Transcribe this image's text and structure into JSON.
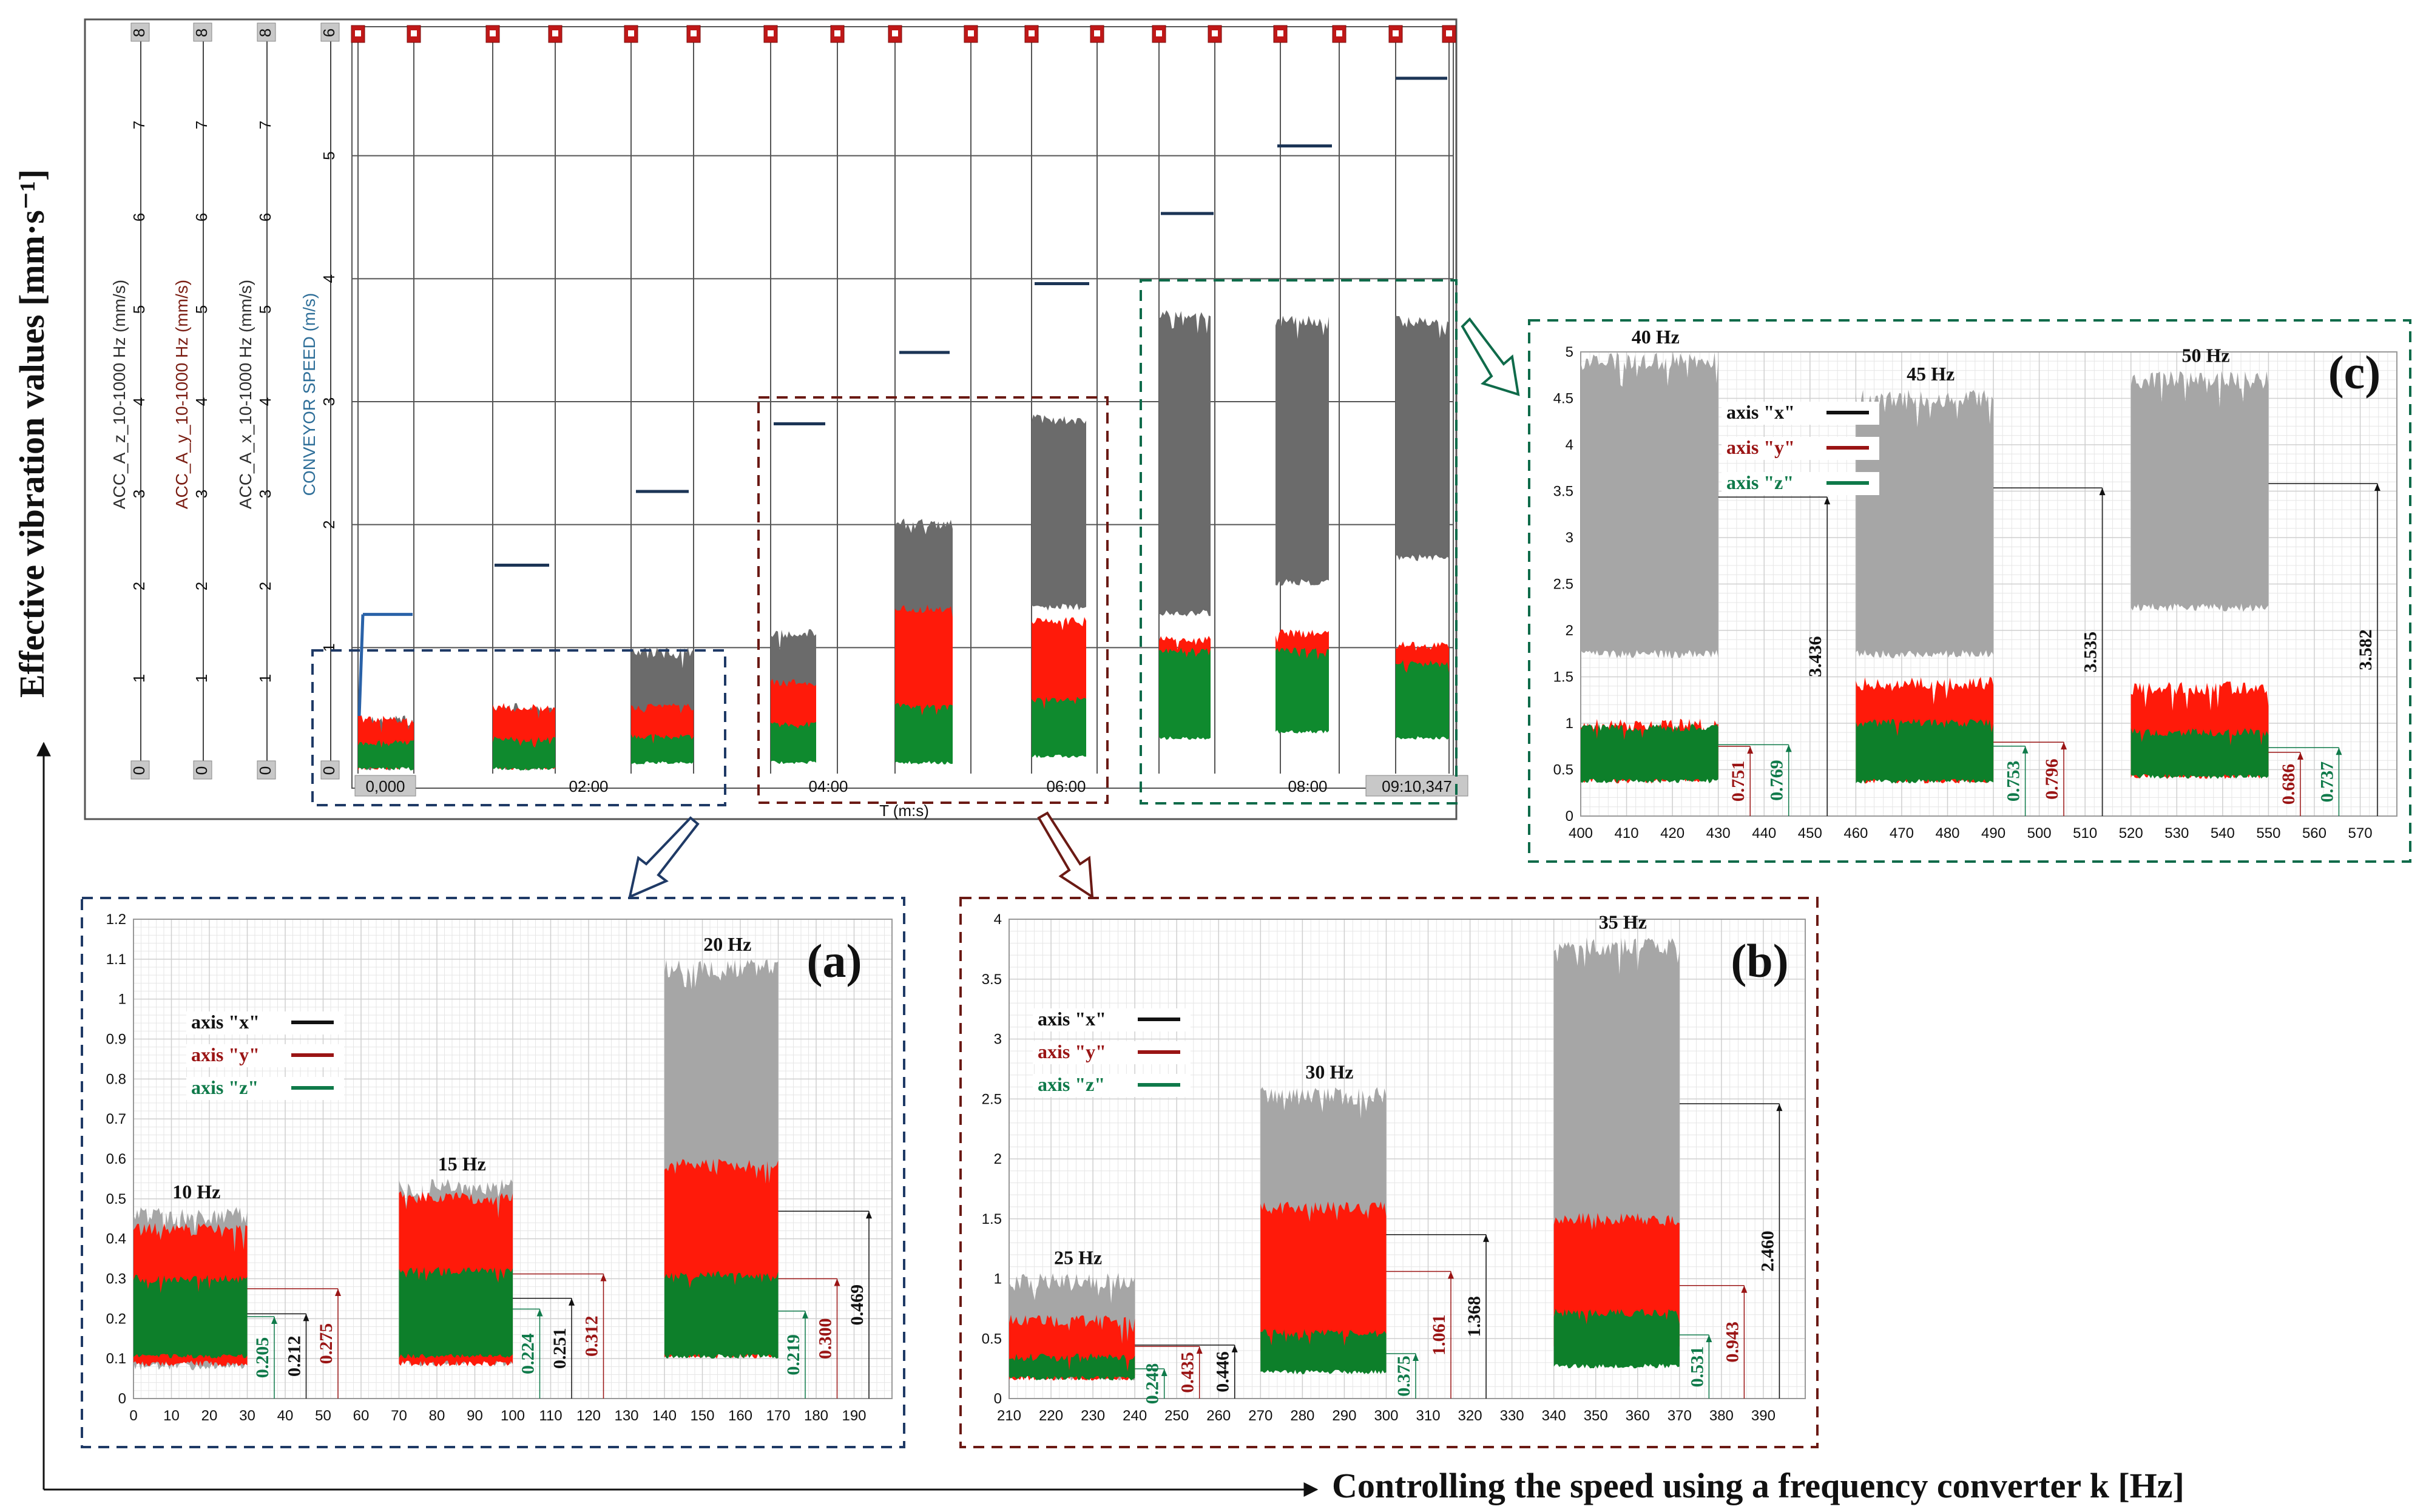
{
  "figure": {
    "ylabel": "Effective vibration values [mm·s⁻¹]",
    "xlabel": "Controlling the speed using a frequency converter k [Hz]"
  },
  "colors": {
    "x": "#8c8c8c",
    "y": "#ff1a0a",
    "z": "#0f8a2e",
    "x_dark": "#6b6b6b",
    "blue": "#1f3a66",
    "maroon": "#6b1a14",
    "green": "#0f6b4a"
  },
  "recorder": {
    "axis_titles": [
      "ACC_A_z_10-1000 Hz (mm/s)",
      "ACC_A_y_10-1000 Hz (mm/s)",
      "ACC_A_x_10-1000 Hz (mm/s)",
      "CONVEYOR SPEED (m/s)"
    ],
    "left_ticks": [
      "0",
      "1",
      "2",
      "3",
      "4",
      "5",
      "6",
      "7",
      "8"
    ],
    "speed_ticks": [
      "0",
      "1",
      "2",
      "3",
      "4",
      "5",
      "6"
    ],
    "time_ticks": [
      "0,000",
      "02:00",
      "04:00",
      "06:00",
      "08:00",
      "09:10,347"
    ],
    "time_label": "T (m:s)",
    "speed_levels": [
      1.27,
      1.67,
      2.27,
      2.82,
      3.4,
      3.96,
      4.53,
      5.08,
      5.63
    ],
    "blocks": [
      {
        "x_low": 0.0,
        "x_high": 0.45,
        "y_low": 0.0,
        "y_high": 0.45,
        "z_low": 0.0,
        "z_high": 0.25
      },
      {
        "x_low": 0.0,
        "x_high": 0.55,
        "y_low": 0.0,
        "y_high": 0.55,
        "z_low": 0.0,
        "z_high": 0.28
      },
      {
        "x_low": 0.35,
        "x_high": 1.0,
        "y_low": 0.1,
        "y_high": 0.55,
        "z_low": 0.05,
        "z_high": 0.3
      },
      {
        "x_low": 0.55,
        "x_high": 1.15,
        "y_low": 0.1,
        "y_high": 0.75,
        "z_low": 0.05,
        "z_high": 0.4
      },
      {
        "x_low": 0.9,
        "x_high": 2.05,
        "y_low": 0.1,
        "y_high": 1.35,
        "z_low": 0.05,
        "z_high": 0.55
      },
      {
        "x_low": 1.3,
        "x_high": 2.9,
        "y_low": 0.25,
        "y_high": 1.25,
        "z_low": 0.1,
        "z_high": 0.6
      },
      {
        "x_low": 1.25,
        "x_high": 3.75,
        "y_low": 0.3,
        "y_high": 1.1,
        "z_low": 0.25,
        "z_high": 1.0
      },
      {
        "x_low": 1.5,
        "x_high": 3.7,
        "y_low": 0.35,
        "y_high": 1.15,
        "z_low": 0.3,
        "z_high": 1.0
      },
      {
        "x_low": 1.7,
        "x_high": 3.7,
        "y_low": 0.3,
        "y_high": 1.05,
        "z_low": 0.25,
        "z_high": 0.9
      }
    ]
  },
  "chart_data": [
    {
      "type": "area",
      "label": "(a)",
      "xlim": [
        0,
        200
      ],
      "ylim": [
        0,
        1.2
      ],
      "xticks": [
        "0",
        "10",
        "20",
        "30",
        "40",
        "50",
        "60",
        "70",
        "80",
        "90",
        "100",
        "110",
        "120",
        "130",
        "140",
        "150",
        "160",
        "170",
        "180",
        "190"
      ],
      "yticks": [
        "0",
        "0.1",
        "0.2",
        "0.3",
        "0.4",
        "0.5",
        "0.6",
        "0.7",
        "0.8",
        "0.9",
        "1",
        "1.1",
        "1.2"
      ],
      "legend": [
        "axis \"x\"",
        "axis \"y\"",
        "axis \"z\""
      ],
      "groups": [
        {
          "label": "10 Hz",
          "x_start": 0,
          "x_end": 30,
          "x_low": 0.07,
          "x_high": 0.48,
          "y_low": 0.08,
          "y_high": 0.44,
          "z_low": 0.1,
          "z_high": 0.31,
          "rms_z": 0.205,
          "rms_x": 0.212,
          "rms_y": 0.275,
          "rms_z_label": "0.205",
          "rms_x_label": "0.212",
          "rms_y_label": "0.275"
        },
        {
          "label": "15 Hz",
          "x_start": 70,
          "x_end": 100,
          "x_low": 0.08,
          "x_high": 0.55,
          "y_low": 0.08,
          "y_high": 0.52,
          "z_low": 0.1,
          "z_high": 0.33,
          "rms_z": 0.224,
          "rms_x": 0.251,
          "rms_y": 0.312,
          "rms_z_label": "0.224",
          "rms_x_label": "0.251",
          "rms_y_label": "0.312"
        },
        {
          "label": "20 Hz",
          "x_start": 140,
          "x_end": 170,
          "x_low": 0.15,
          "x_high": 1.1,
          "y_low": 0.1,
          "y_high": 0.6,
          "z_low": 0.1,
          "z_high": 0.32,
          "rms_z": 0.219,
          "rms_y": 0.3,
          "rms_x": 0.469,
          "rms_z_label": "0.219",
          "rms_y_label": "0.300",
          "rms_x_label": "0.469"
        }
      ]
    },
    {
      "type": "area",
      "label": "(b)",
      "xlim": [
        210,
        400
      ],
      "ylim": [
        0,
        4
      ],
      "xticks": [
        "210",
        "220",
        "230",
        "240",
        "250",
        "260",
        "270",
        "280",
        "290",
        "300",
        "310",
        "320",
        "330",
        "340",
        "350",
        "360",
        "370",
        "380",
        "390"
      ],
      "yticks": [
        "0",
        "0.5",
        "1",
        "1.5",
        "2",
        "2.5",
        "3",
        "3.5",
        "4"
      ],
      "legend": [
        "axis \"x\"",
        "axis \"y\"",
        "axis \"z\""
      ],
      "groups": [
        {
          "label": "25 Hz",
          "x_start": 210,
          "x_end": 240,
          "x_low": 0.15,
          "x_high": 1.05,
          "y_low": 0.15,
          "y_high": 0.7,
          "z_low": 0.15,
          "z_high": 0.38,
          "rms_z": 0.248,
          "rms_y": 0.435,
          "rms_x": 0.446,
          "rms_z_label": "0.248",
          "rms_y_label": "0.435",
          "rms_x_label": "0.446"
        },
        {
          "label": "30 Hz",
          "x_start": 270,
          "x_end": 300,
          "x_low": 0.3,
          "x_high": 2.6,
          "y_low": 0.35,
          "y_high": 1.65,
          "z_low": 0.2,
          "z_high": 0.58,
          "rms_z": 0.375,
          "rms_y": 1.061,
          "rms_x": 1.368,
          "rms_z_label": "0.375",
          "rms_y_label": "1.061",
          "rms_x_label": "1.368"
        },
        {
          "label": "35 Hz",
          "x_start": 340,
          "x_end": 370,
          "x_low": 0.3,
          "x_high": 3.85,
          "y_low": 0.4,
          "y_high": 1.55,
          "z_low": 0.25,
          "z_high": 0.75,
          "rms_z": 0.531,
          "rms_y": 0.943,
          "rms_x": 2.46,
          "rms_z_label": "0.531",
          "rms_y_label": "0.943",
          "rms_x_label": "2.460"
        }
      ]
    },
    {
      "type": "area",
      "label": "(c)",
      "xlim": [
        400,
        578
      ],
      "ylim": [
        0,
        5
      ],
      "xticks": [
        "400",
        "410",
        "420",
        "430",
        "440",
        "450",
        "460",
        "470",
        "480",
        "490",
        "500",
        "510",
        "520",
        "530",
        "540",
        "550",
        "560",
        "570"
      ],
      "yticks": [
        "0",
        "0.5",
        "1",
        "1.5",
        "2",
        "2.5",
        "3",
        "3.5",
        "4",
        "4.5",
        "5"
      ],
      "legend": [
        "axis \"x\"",
        "axis \"y\"",
        "axis \"z\""
      ],
      "groups": [
        {
          "label": "40 Hz",
          "x_start": 400,
          "x_end": 430,
          "x_low": 1.7,
          "x_high": 5.0,
          "y_low": 0.35,
          "y_high": 1.05,
          "z_low": 0.35,
          "z_high": 1.0,
          "rms_y": 0.751,
          "rms_z": 0.769,
          "rms_x": 3.436,
          "rms_y_label": "0.751",
          "rms_z_label": "0.769",
          "rms_x_label": "3.436"
        },
        {
          "label": "45 Hz",
          "x_start": 460,
          "x_end": 490,
          "x_low": 1.7,
          "x_high": 4.6,
          "y_low": 0.35,
          "y_high": 1.5,
          "z_low": 0.35,
          "z_high": 1.05,
          "rms_z": 0.753,
          "rms_y": 0.796,
          "rms_x": 3.535,
          "rms_z_label": "0.753",
          "rms_y_label": "0.796",
          "rms_x_label": "3.535"
        },
        {
          "label": "50 Hz",
          "x_start": 520,
          "x_end": 550,
          "x_low": 2.2,
          "x_high": 4.8,
          "y_low": 0.4,
          "y_high": 1.45,
          "z_low": 0.4,
          "z_high": 0.95,
          "rms_y": 0.686,
          "rms_z": 0.737,
          "rms_x": 3.582,
          "rms_y_label": "0.686",
          "rms_z_label": "0.737",
          "rms_x_label": "3.582"
        }
      ]
    }
  ]
}
